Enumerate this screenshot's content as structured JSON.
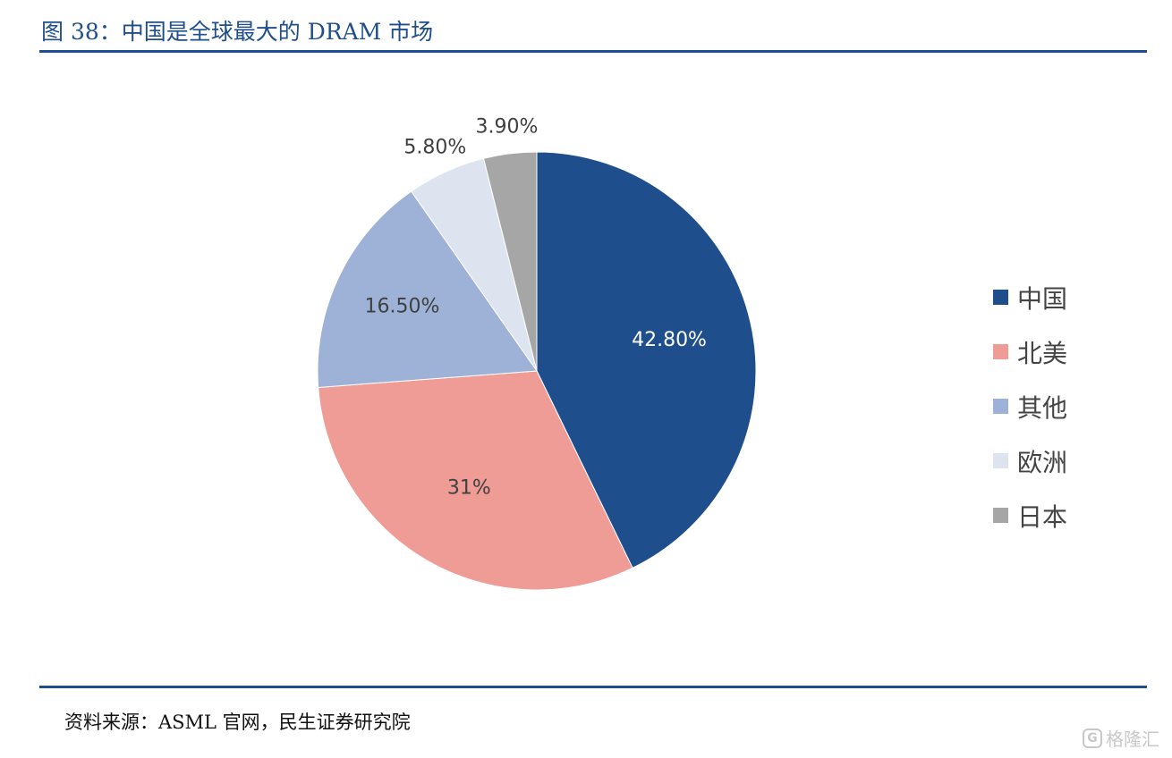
{
  "figure": {
    "title": "图 38：中国是全球最大的 DRAM 市场",
    "source": "资料来源：ASML 官网，民生证券研究院"
  },
  "colors": {
    "accent": "#1f4e8c",
    "slices": [
      "#1f4e8c",
      "#ef9b96",
      "#9db2d6",
      "#dde4f0",
      "#a6a6a6"
    ]
  },
  "chart_data": {
    "type": "pie",
    "categories": [
      "中国",
      "北美",
      "其他",
      "欧洲",
      "日本"
    ],
    "values": [
      42.8,
      31.0,
      16.5,
      5.8,
      3.9
    ],
    "labels": [
      "42.80%",
      "31%",
      "16.50%",
      "5.80%",
      "3.90%"
    ],
    "legend_position": "right"
  },
  "watermark": {
    "logo_char": "G",
    "text": "格隆汇"
  }
}
